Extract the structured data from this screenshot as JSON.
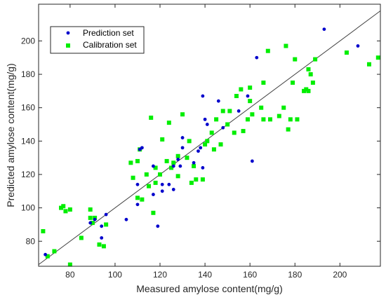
{
  "chart_data": {
    "type": "scatter",
    "title": "",
    "xlabel": "Measured amylose content(mg/g)",
    "ylabel": "Predicted amylose content(mg/g)",
    "xlim": [
      66,
      218
    ],
    "ylim": [
      65,
      222
    ],
    "xticks": [
      80,
      100,
      120,
      140,
      160,
      180,
      200
    ],
    "yticks": [
      80,
      100,
      120,
      140,
      160,
      180,
      200
    ],
    "grid": false,
    "legend_position": "top-left",
    "reference_line": "y = x",
    "series": [
      {
        "name": "Prediction set",
        "marker": "circle",
        "color": "#0000cc",
        "points": [
          [
            69,
            72
          ],
          [
            89,
            91
          ],
          [
            91,
            93
          ],
          [
            94,
            89
          ],
          [
            94,
            82
          ],
          [
            96,
            96
          ],
          [
            105,
            93
          ],
          [
            110,
            102
          ],
          [
            110,
            114
          ],
          [
            111,
            135
          ],
          [
            112,
            136
          ],
          [
            117,
            108
          ],
          [
            117,
            125
          ],
          [
            119,
            89
          ],
          [
            121,
            114
          ],
          [
            121,
            110
          ],
          [
            124,
            114
          ],
          [
            126,
            111
          ],
          [
            126,
            125
          ],
          [
            128,
            129
          ],
          [
            129,
            125
          ],
          [
            130,
            142
          ],
          [
            130,
            136
          ],
          [
            135,
            127
          ],
          [
            137,
            134
          ],
          [
            138,
            136
          ],
          [
            139,
            124
          ],
          [
            139,
            167
          ],
          [
            140,
            153
          ],
          [
            141,
            150
          ],
          [
            146,
            164
          ],
          [
            148,
            148
          ],
          [
            155,
            158
          ],
          [
            159,
            167
          ],
          [
            161,
            128
          ],
          [
            163,
            190
          ],
          [
            193,
            207
          ],
          [
            208,
            197
          ]
        ]
      },
      {
        "name": "Calibration set",
        "marker": "square",
        "color": "#00ee00",
        "points": [
          [
            68,
            86
          ],
          [
            70,
            71
          ],
          [
            73,
            74
          ],
          [
            76,
            100
          ],
          [
            77,
            101
          ],
          [
            78,
            98
          ],
          [
            80,
            99
          ],
          [
            80,
            66
          ],
          [
            85,
            82
          ],
          [
            89,
            99
          ],
          [
            89,
            94
          ],
          [
            90,
            91
          ],
          [
            91,
            94
          ],
          [
            93,
            78
          ],
          [
            95,
            77
          ],
          [
            96,
            90
          ],
          [
            107,
            127
          ],
          [
            108,
            118
          ],
          [
            110,
            128
          ],
          [
            110,
            106
          ],
          [
            111,
            135
          ],
          [
            112,
            105
          ],
          [
            114,
            120
          ],
          [
            115,
            113
          ],
          [
            116,
            154
          ],
          [
            117,
            97
          ],
          [
            118,
            115
          ],
          [
            118,
            124
          ],
          [
            120,
            120
          ],
          [
            121,
            141
          ],
          [
            123,
            128
          ],
          [
            124,
            151
          ],
          [
            125,
            124
          ],
          [
            126,
            127
          ],
          [
            128,
            119
          ],
          [
            128,
            131
          ],
          [
            130,
            156
          ],
          [
            132,
            130
          ],
          [
            133,
            140
          ],
          [
            134,
            115
          ],
          [
            135,
            125
          ],
          [
            136,
            117
          ],
          [
            139,
            117
          ],
          [
            140,
            138
          ],
          [
            141,
            140
          ],
          [
            143,
            145
          ],
          [
            144,
            135
          ],
          [
            145,
            153
          ],
          [
            147,
            138
          ],
          [
            148,
            158
          ],
          [
            150,
            150
          ],
          [
            151,
            158
          ],
          [
            153,
            145
          ],
          [
            154,
            167
          ],
          [
            156,
            171
          ],
          [
            157,
            146
          ],
          [
            159,
            153
          ],
          [
            160,
            164
          ],
          [
            160,
            172
          ],
          [
            161,
            156
          ],
          [
            165,
            160
          ],
          [
            166,
            175
          ],
          [
            166,
            153
          ],
          [
            168,
            194
          ],
          [
            169,
            153
          ],
          [
            173,
            155
          ],
          [
            175,
            160
          ],
          [
            176,
            197
          ],
          [
            177,
            147
          ],
          [
            178,
            153
          ],
          [
            179,
            175
          ],
          [
            180,
            189
          ],
          [
            181,
            153
          ],
          [
            184,
            170
          ],
          [
            185,
            171
          ],
          [
            186,
            183
          ],
          [
            186,
            170
          ],
          [
            187,
            180
          ],
          [
            188,
            175
          ],
          [
            189,
            189
          ],
          [
            203,
            193
          ],
          [
            213,
            186
          ],
          [
            217,
            190
          ]
        ]
      }
    ]
  }
}
